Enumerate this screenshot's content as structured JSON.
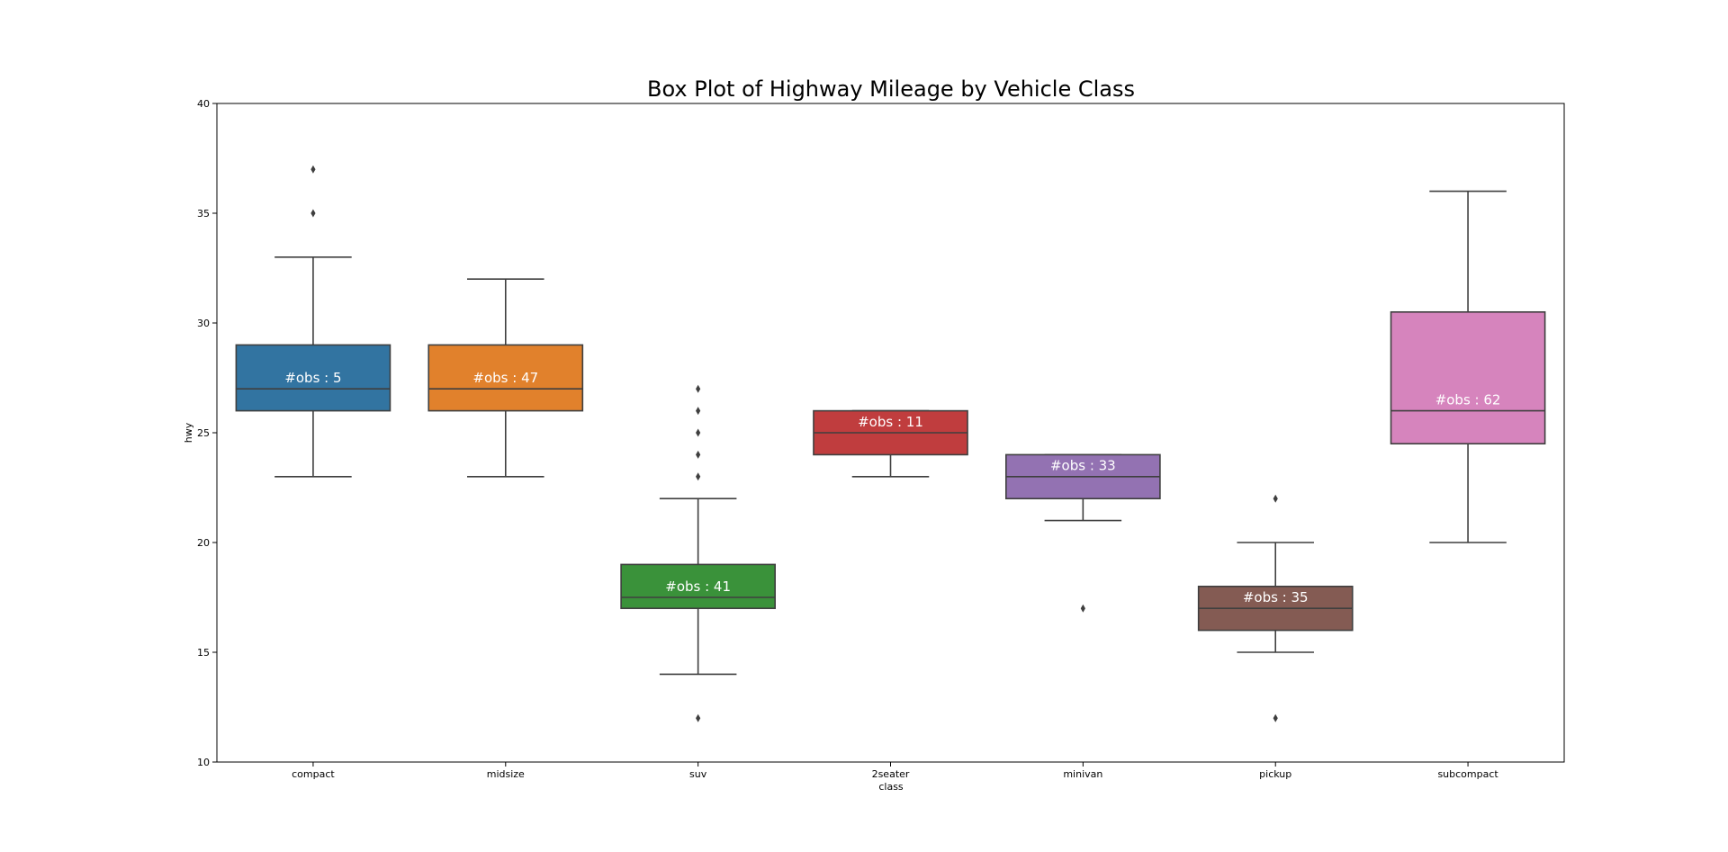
{
  "chart_data": {
    "type": "box",
    "title": "Box Plot of Highway Mileage by Vehicle Class",
    "xlabel": "class",
    "ylabel": "hwy",
    "ylim": [
      10,
      40
    ],
    "yticks": [
      10,
      15,
      20,
      25,
      30,
      35,
      40
    ],
    "grid": false,
    "categories": [
      "compact",
      "midsize",
      "suv",
      "2seater",
      "minivan",
      "pickup",
      "subcompact"
    ],
    "boxes": [
      {
        "category": "compact",
        "color": "#3274a1",
        "whisker_low": 23,
        "q1": 26,
        "median": 27,
        "q3": 29,
        "whisker_high": 33,
        "outliers": [
          35,
          37
        ],
        "annotation": "#obs : 5",
        "annotation_y": 27.5
      },
      {
        "category": "midsize",
        "color": "#e1812c",
        "whisker_low": 23,
        "q1": 26,
        "median": 27,
        "q3": 29,
        "whisker_high": 32,
        "outliers": [],
        "annotation": "#obs : 47",
        "annotation_y": 27.5
      },
      {
        "category": "suv",
        "color": "#3a923a",
        "whisker_low": 14,
        "q1": 17,
        "median": 17.5,
        "q3": 19,
        "whisker_high": 22,
        "outliers": [
          12,
          23,
          24,
          25,
          26,
          27
        ],
        "annotation": "#obs : 41",
        "annotation_y": 18
      },
      {
        "category": "2seater",
        "color": "#c03d3e",
        "whisker_low": 23,
        "q1": 24,
        "median": 25,
        "q3": 26,
        "whisker_high": 26,
        "outliers": [],
        "annotation": "#obs : 11",
        "annotation_y": 25.5
      },
      {
        "category": "minivan",
        "color": "#9372b2",
        "whisker_low": 21,
        "q1": 22,
        "median": 23,
        "q3": 24,
        "whisker_high": 24,
        "outliers": [
          17
        ],
        "annotation": "#obs : 33",
        "annotation_y": 23.5
      },
      {
        "category": "pickup",
        "color": "#845b53",
        "whisker_low": 15,
        "q1": 16,
        "median": 17,
        "q3": 18,
        "whisker_high": 20,
        "outliers": [
          12,
          22
        ],
        "annotation": "#obs : 35",
        "annotation_y": 17.5
      },
      {
        "category": "subcompact",
        "color": "#d684bd",
        "whisker_low": 20,
        "q1": 24.5,
        "median": 26,
        "q3": 30.5,
        "whisker_high": 36,
        "outliers": [],
        "annotation": "#obs : 62",
        "annotation_y": 26.5
      }
    ]
  }
}
